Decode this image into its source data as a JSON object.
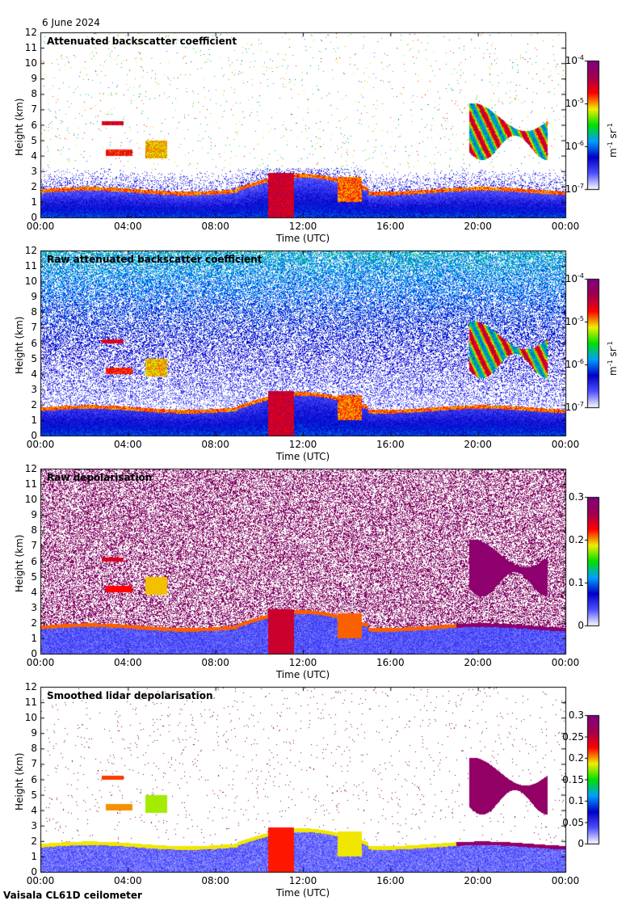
{
  "date_label": "6 June 2024",
  "instrument_label": "Vaisala CL61D ceilometer",
  "chart_data": [
    {
      "type": "heatmap",
      "title": "Attenuated backscatter coefficient",
      "xlabel": "Time (UTC)",
      "ylabel": "Height (km)",
      "x_ticks": [
        "00:00",
        "04:00",
        "08:00",
        "12:00",
        "16:00",
        "20:00",
        "00:00"
      ],
      "y_ticks": [
        0,
        1,
        2,
        3,
        4,
        5,
        6,
        7,
        8,
        9,
        10,
        11,
        12
      ],
      "ylim": [
        0,
        12
      ],
      "grid": false,
      "colorbar": {
        "scale": "log",
        "ticks": [
          {
            "base": "10",
            "exp": "-4"
          },
          {
            "base": "10",
            "exp": "-5"
          },
          {
            "base": "10",
            "exp": "-6"
          },
          {
            "base": "10",
            "exp": "-7"
          }
        ],
        "unit": "m-1 sr-1"
      }
    },
    {
      "type": "heatmap",
      "title": "Raw attenuated backscatter coefficient",
      "xlabel": "Time (UTC)",
      "ylabel": "Height (km)",
      "x_ticks": [
        "00:00",
        "04:00",
        "08:00",
        "12:00",
        "16:00",
        "20:00",
        "00:00"
      ],
      "y_ticks": [
        0,
        1,
        2,
        3,
        4,
        5,
        6,
        7,
        8,
        9,
        10,
        11,
        12
      ],
      "ylim": [
        0,
        12
      ],
      "grid": false,
      "colorbar": {
        "scale": "log",
        "ticks": [
          {
            "base": "10",
            "exp": "-4"
          },
          {
            "base": "10",
            "exp": "-5"
          },
          {
            "base": "10",
            "exp": "-6"
          },
          {
            "base": "10",
            "exp": "-7"
          }
        ],
        "unit": "m-1 sr-1"
      }
    },
    {
      "type": "heatmap",
      "title": "Raw depolarisation",
      "xlabel": "Time (UTC)",
      "ylabel": "Height (km)",
      "x_ticks": [
        "00:00",
        "04:00",
        "08:00",
        "12:00",
        "16:00",
        "20:00",
        "00:00"
      ],
      "y_ticks": [
        0,
        1,
        2,
        3,
        4,
        5,
        6,
        7,
        8,
        9,
        10,
        11,
        12
      ],
      "ylim": [
        0,
        12
      ],
      "grid": false,
      "colorbar": {
        "scale": "linear",
        "ticks": [
          "0.3",
          "0.2",
          "0.1",
          "0"
        ]
      }
    },
    {
      "type": "heatmap",
      "title": "Smoothed lidar depolarisation",
      "xlabel": "Time (UTC)",
      "ylabel": "Height (km)",
      "x_ticks": [
        "00:00",
        "04:00",
        "08:00",
        "12:00",
        "16:00",
        "20:00",
        "00:00"
      ],
      "y_ticks": [
        0,
        1,
        2,
        3,
        4,
        5,
        6,
        7,
        8,
        9,
        10,
        11,
        12
      ],
      "ylim": [
        0,
        12
      ],
      "grid": false,
      "colorbar": {
        "scale": "linear",
        "ticks": [
          "0.3",
          "0.25",
          "0.2",
          "0.15",
          "0.1",
          "0.05",
          "0"
        ]
      }
    }
  ],
  "colors": {
    "colormap": [
      "#ffffff",
      "#5050ff",
      "#0000c8",
      "#00a0ff",
      "#00e000",
      "#f0f000",
      "#ff0000",
      "#a00050",
      "#800080"
    ]
  }
}
